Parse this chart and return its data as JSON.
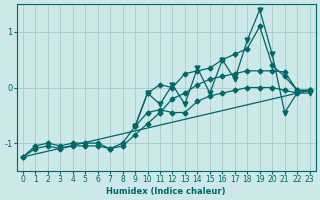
{
  "xlabel": "Humidex (Indice chaleur)",
  "xlim": [
    -0.5,
    23.5
  ],
  "ylim": [
    -1.5,
    1.5
  ],
  "yticks": [
    -1,
    0,
    1
  ],
  "xticks": [
    0,
    1,
    2,
    3,
    4,
    5,
    6,
    7,
    8,
    9,
    10,
    11,
    12,
    13,
    14,
    15,
    16,
    17,
    18,
    19,
    20,
    21,
    22,
    23
  ],
  "bg_color": "#cce8e8",
  "grid_color": "#aad0d0",
  "line_color": "#006666",
  "line1_x": [
    0,
    1,
    2,
    3,
    4,
    5,
    6,
    7,
    8,
    9,
    10,
    11,
    12,
    13,
    14,
    15,
    16,
    17,
    18,
    19,
    20,
    21,
    22,
    23
  ],
  "line1_y": [
    -1.25,
    -1.1,
    -1.05,
    -1.1,
    -1.05,
    -1.05,
    -1.05,
    -1.1,
    -1.05,
    -0.85,
    -0.65,
    -0.45,
    -0.2,
    -0.1,
    0.05,
    0.15,
    0.2,
    0.25,
    0.3,
    0.3,
    0.3,
    0.28,
    -0.05,
    -0.05
  ],
  "line2_x": [
    0,
    1,
    2,
    3,
    4,
    5,
    6,
    7,
    8,
    9,
    10,
    11,
    12,
    13,
    14,
    15,
    16,
    17,
    18,
    19,
    20,
    21,
    22,
    23
  ],
  "line2_y": [
    -1.25,
    -1.05,
    -1.0,
    -1.05,
    -1.0,
    -1.0,
    -1.0,
    -1.1,
    -1.0,
    -0.7,
    -0.45,
    -0.4,
    -0.45,
    -0.45,
    -0.25,
    -0.15,
    -0.1,
    -0.05,
    0.0,
    0.0,
    0.0,
    -0.05,
    -0.1,
    -0.05
  ],
  "line3_x": [
    0,
    23
  ],
  "line3_y": [
    -1.25,
    -0.05
  ],
  "line4_x": [
    9,
    10,
    11,
    12,
    13,
    14,
    15,
    16,
    17,
    18,
    19,
    20,
    21,
    22,
    23
  ],
  "line4_y": [
    -0.7,
    -0.1,
    0.05,
    0.0,
    0.25,
    0.3,
    0.35,
    0.5,
    0.6,
    0.7,
    1.1,
    0.4,
    0.2,
    -0.05,
    -0.05
  ],
  "line5_x": [
    9,
    10,
    11,
    12,
    13,
    14,
    15,
    16,
    17,
    18,
    19,
    20,
    21,
    22,
    23
  ],
  "line5_y": [
    -0.7,
    -0.1,
    -0.3,
    0.05,
    -0.3,
    0.35,
    -0.1,
    0.5,
    0.15,
    0.85,
    1.4,
    0.6,
    -0.45,
    -0.1,
    -0.1
  ]
}
